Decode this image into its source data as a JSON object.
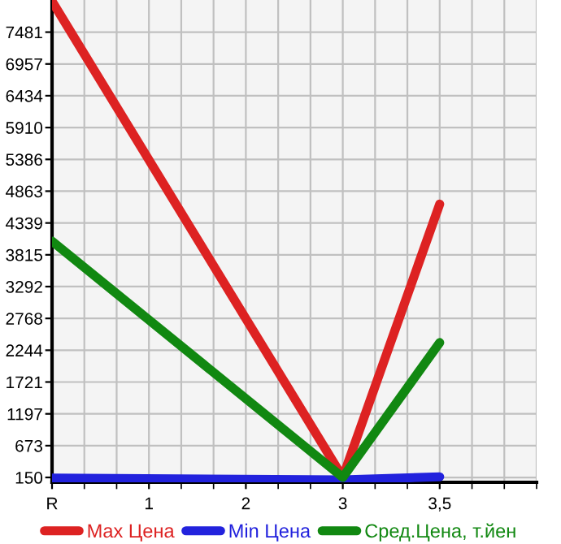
{
  "chart_data": {
    "type": "line",
    "categories": [
      "R",
      "1",
      "2",
      "3",
      "3,5"
    ],
    "series": [
      {
        "name": "Max Цена",
        "color": "#dd2222",
        "values": [
          7990,
          null,
          null,
          150,
          4650
        ]
      },
      {
        "name": "Min Цена",
        "color": "#2222dd",
        "values": [
          140,
          null,
          null,
          110,
          160
        ]
      },
      {
        "name": "Сред.Цена, т.йен",
        "color": "#118811",
        "values": [
          4040,
          null,
          null,
          150,
          2370
        ]
      }
    ],
    "ylim": [
      70,
      8010
    ],
    "yticks": [
      150,
      673,
      1197,
      1721,
      2244,
      2768,
      3292,
      3815,
      4339,
      4863,
      5386,
      5910,
      6434,
      6957,
      7481
    ],
    "grid": true,
    "legend": "bottom",
    "marker": "none",
    "line_style": "solid"
  }
}
